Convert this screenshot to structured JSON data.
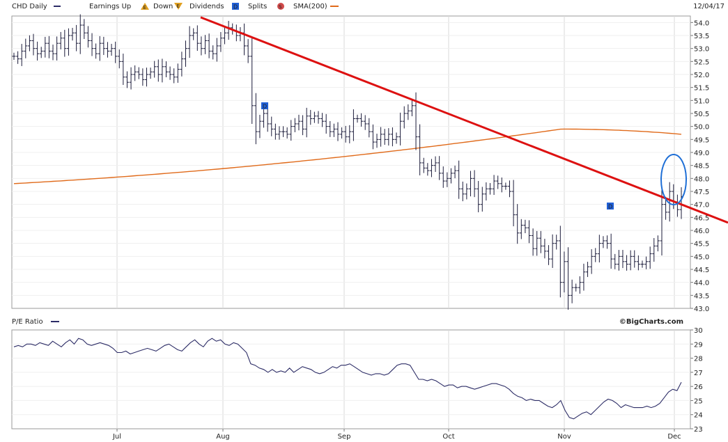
{
  "header": {
    "symbol_label": "CHD Daily",
    "earnings_label": "Earnings Up",
    "earnings_up_icon": "E",
    "down_label": "Down",
    "earnings_down_icon": "E",
    "dividends_label": "Dividends",
    "dividends_icon": "D",
    "splits_label": "Splits",
    "splits_icon": "S",
    "sma_label": "SMA(200)",
    "date": "12/04/17"
  },
  "pe": {
    "label": "P/E Ratio",
    "brand": "©BigCharts.com"
  },
  "colors": {
    "price": "#1b1b3a",
    "sma": "#e06a1a",
    "trendline": "#dd1111",
    "highlight": "#1f6fd6",
    "pe_line": "#2c2c66",
    "grid": "#d9d9d9",
    "marker": "#1f5fd6"
  },
  "chart_data": [
    {
      "type": "bar",
      "title": "CHD Daily",
      "ylim": [
        43.0,
        54.25
      ],
      "y_ticks": [
        "54.0",
        "53.5",
        "53.0",
        "52.5",
        "52.0",
        "51.5",
        "51.0",
        "50.5",
        "50.0",
        "49.5",
        "49.0",
        "48.5",
        "48.0",
        "47.5",
        "47.0",
        "46.5",
        "46.0",
        "45.5",
        "45.0",
        "44.5",
        "44.0",
        "43.5",
        "43.0"
      ],
      "x_ticks": [
        "Jul",
        "Aug",
        "Sep",
        "Oct",
        "Nov",
        "Dec"
      ],
      "closes": [
        52.7,
        52.6,
        52.9,
        53.1,
        53.3,
        53.0,
        52.8,
        52.9,
        53.2,
        52.9,
        52.8,
        53.2,
        53.4,
        53.0,
        53.5,
        53.6,
        53.2,
        53.9,
        53.6,
        53.3,
        53.0,
        52.8,
        53.2,
        53.0,
        52.9,
        53.0,
        52.7,
        52.5,
        51.9,
        51.7,
        52.0,
        52.1,
        52.0,
        51.8,
        52.0,
        52.1,
        52.3,
        52.0,
        52.3,
        52.1,
        52.0,
        51.9,
        52.2,
        52.6,
        53.0,
        53.5,
        53.6,
        53.2,
        53.0,
        53.3,
        52.9,
        52.8,
        53.1,
        53.4,
        53.6,
        53.8,
        53.7,
        53.5,
        53.6,
        53.1,
        52.7,
        50.8,
        49.8,
        50.2,
        50.5,
        50.1,
        49.9,
        49.7,
        49.8,
        49.8,
        49.7,
        50.0,
        50.1,
        50.2,
        49.9,
        50.4,
        50.3,
        50.4,
        50.3,
        50.2,
        50.0,
        49.8,
        49.9,
        49.7,
        49.8,
        49.6,
        49.8,
        50.3,
        50.3,
        50.2,
        50.1,
        49.8,
        49.4,
        49.5,
        49.7,
        49.5,
        49.7,
        49.5,
        49.6,
        50.2,
        50.5,
        50.6,
        50.8,
        49.6,
        48.6,
        48.4,
        48.3,
        48.5,
        48.6,
        48.2,
        47.9,
        48.0,
        48.2,
        48.3,
        47.6,
        47.4,
        47.6,
        48.0,
        47.6,
        47.0,
        47.4,
        47.6,
        47.6,
        47.9,
        47.8,
        47.7,
        47.7,
        47.5,
        46.6,
        45.9,
        46.2,
        46.1,
        45.8,
        45.3,
        45.7,
        45.4,
        45.2,
        44.9,
        45.5,
        45.6,
        44.0,
        44.8,
        43.5,
        43.8,
        43.8,
        44.0,
        44.4,
        44.6,
        45.0,
        45.1,
        45.5,
        45.6,
        45.5,
        44.9,
        44.7,
        45.0,
        44.8,
        44.7,
        45.0,
        44.8,
        44.7,
        44.7,
        44.8,
        45.1,
        45.4,
        45.6,
        47.0,
        46.7,
        47.5,
        47.1,
        46.8,
        47.3
      ],
      "sma200_start": 47.8,
      "sma200_peak": 49.9,
      "sma200_end": 49.7,
      "trendline": {
        "start_value": 54.2,
        "end_value": 46.3
      },
      "dividend_markers": 2
    },
    {
      "type": "line",
      "title": "P/E Ratio",
      "ylim": [
        23,
        30
      ],
      "y_ticks": [
        "30",
        "29",
        "28",
        "27",
        "26",
        "25",
        "24",
        "23"
      ],
      "values": [
        28.8,
        28.9,
        28.8,
        29.0,
        29.0,
        28.9,
        29.1,
        29.0,
        28.9,
        29.2,
        29.0,
        28.8,
        29.1,
        29.3,
        29.0,
        29.4,
        29.3,
        29.0,
        28.9,
        29.0,
        29.1,
        29.0,
        28.9,
        28.7,
        28.4,
        28.4,
        28.5,
        28.3,
        28.4,
        28.5,
        28.6,
        28.7,
        28.6,
        28.5,
        28.7,
        28.9,
        29.0,
        28.8,
        28.6,
        28.5,
        28.8,
        29.1,
        29.3,
        29.0,
        28.8,
        29.2,
        29.4,
        29.2,
        29.3,
        29.0,
        28.9,
        29.1,
        29.0,
        28.7,
        28.4,
        27.6,
        27.5,
        27.3,
        27.2,
        27.0,
        27.2,
        27.0,
        27.1,
        27.0,
        27.3,
        27.0,
        27.2,
        27.4,
        27.3,
        27.2,
        27.0,
        26.9,
        27.0,
        27.2,
        27.4,
        27.3,
        27.5,
        27.5,
        27.6,
        27.4,
        27.2,
        27.0,
        26.9,
        26.8,
        26.9,
        26.9,
        26.8,
        26.9,
        27.2,
        27.5,
        27.6,
        27.6,
        27.5,
        27.0,
        26.5,
        26.5,
        26.4,
        26.5,
        26.4,
        26.2,
        26.0,
        26.1,
        26.1,
        25.9,
        26.0,
        26.0,
        25.9,
        25.8,
        25.9,
        26.0,
        26.1,
        26.2,
        26.2,
        26.1,
        26.0,
        25.8,
        25.5,
        25.3,
        25.2,
        25.0,
        25.1,
        25.0,
        25.0,
        24.8,
        24.6,
        24.5,
        24.7,
        25.0,
        24.3,
        23.8,
        23.7,
        23.9,
        24.1,
        24.2,
        24.0,
        24.3,
        24.6,
        24.9,
        25.1,
        25.0,
        24.8,
        24.5,
        24.7,
        24.6,
        24.5,
        24.5,
        24.5,
        24.6,
        24.5,
        24.6,
        24.8,
        25.2,
        25.6,
        25.8,
        25.7,
        26.3
      ]
    }
  ]
}
